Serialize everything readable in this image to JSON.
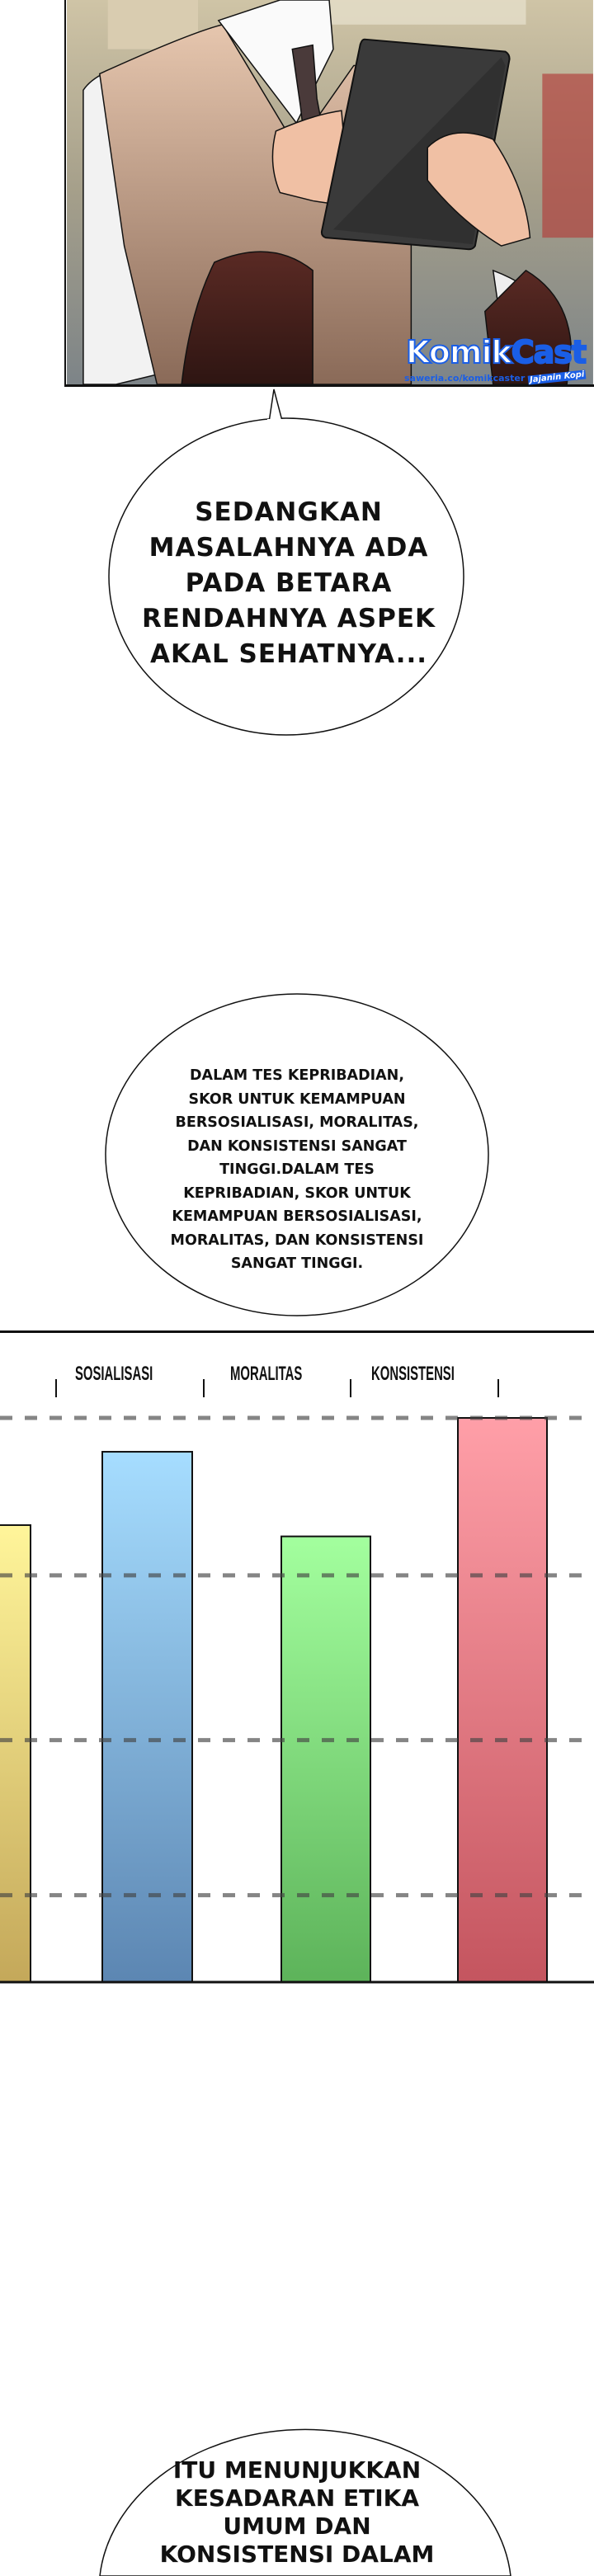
{
  "watermark": {
    "brand": "KomikCast",
    "url": "saweria.co/komikcaster",
    "tagline": "Jajanin Kopi",
    "color": "#1a5ee6"
  },
  "bubbles": [
    {
      "text": "SEDANGKAN\nMASALAHNYA ADA\nPADA BETARA\nRENDAHNYA ASPEK\nAKAL SEHATNYA..."
    },
    {
      "text": "DALAM TES KEPRIBADIAN,\nSKOR UNTUK KEMAMPUAN\nBERSOSIALISASI, MORALITAS,\nDAN KONSISTENSI SANGAT\nTINGGI.DALAM TES\nKEPRIBADIAN, SKOR UNTUK\nKEMAMPUAN BERSOSIALISASI,\nMORALITAS, DAN KONSISTENSI\nSANGAT TINGGI."
    },
    {
      "text": "ITU MENUNJUKKAN\nKESADARAN ETIKA\nUMUM DAN\nKONSISTENSI DALAM"
    }
  ],
  "chart_data": {
    "type": "bar",
    "categories": [
      "",
      "SOSIALISASI",
      "MORALITAS",
      "KONSISTENSI"
    ],
    "values": [
      0.81,
      0.94,
      0.79,
      1.0
    ],
    "colors": [
      [
        "#fff59a",
        "#c4a85a"
      ],
      [
        "#a6ddff",
        "#5c86b2"
      ],
      [
        "#a3ff9e",
        "#5db35a"
      ],
      [
        "#ff9fa8",
        "#c4555f"
      ]
    ],
    "grid": true,
    "grid_style": "dashed",
    "ylim": [
      0,
      1
    ]
  }
}
